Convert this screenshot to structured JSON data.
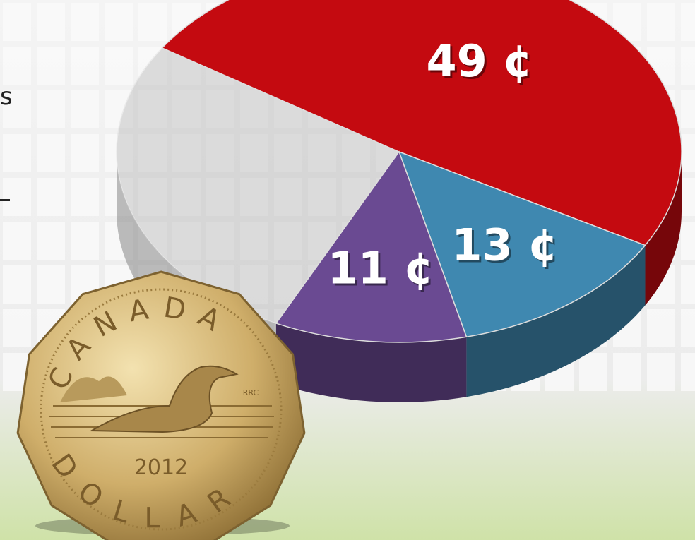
{
  "chart_data": {
    "type": "pie",
    "values": [
      49,
      13,
      11,
      27
    ],
    "value_labels": [
      "49 ¢",
      "13 ¢",
      "11 ¢",
      null
    ],
    "colors": [
      "#c40a10",
      "#3f88b0",
      "#6a4a92",
      "#b8b8b8"
    ]
  },
  "side_text": "s",
  "coin": {
    "top": "CANADA",
    "bottom": "DOLLAR",
    "year": "2012",
    "mark": "RRC"
  }
}
